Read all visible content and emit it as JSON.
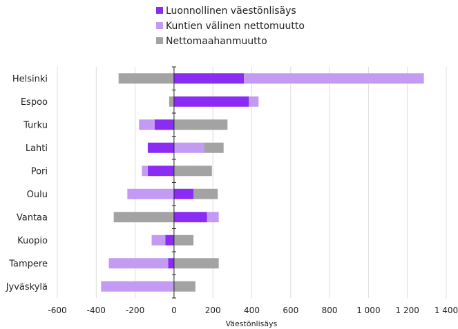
{
  "chart_data": {
    "type": "bar",
    "orientation": "horizontal",
    "stacked": "diverging",
    "categories": [
      "Helsinki",
      "Espoo",
      "Turku",
      "Lahti",
      "Pori",
      "Oulu",
      "Vantaa",
      "Kuopio",
      "Tampere",
      "Jyväskylä"
    ],
    "series": [
      {
        "name": "Luonnollinen väestönlisäys",
        "color": "#8b2cf5",
        "values": [
          360,
          385,
          -100,
          -135,
          -135,
          100,
          170,
          -45,
          -30,
          0
        ]
      },
      {
        "name": "Kuntien välinen nettomuutto",
        "color": "#c39bf2",
        "values": [
          925,
          50,
          -80,
          155,
          -30,
          -240,
          60,
          -70,
          -305,
          -375
        ]
      },
      {
        "name": "Nettomaahanmuutto",
        "color": "#a3a3a3",
        "values": [
          -285,
          -25,
          275,
          100,
          195,
          125,
          -310,
          100,
          230,
          110
        ]
      }
    ],
    "xlabel": "Väestönlisäys",
    "xlim": [
      -600,
      1400
    ],
    "x_ticks": [
      -600,
      -400,
      -200,
      0,
      200,
      400,
      600,
      800,
      1000,
      1200,
      1400
    ],
    "x_tick_labels": [
      "-600",
      "-400",
      "-200",
      "0",
      "200",
      "400",
      "600",
      "800",
      "1 000",
      "1 200",
      "1 400"
    ],
    "grid": "vertical",
    "legend_position": "top"
  }
}
